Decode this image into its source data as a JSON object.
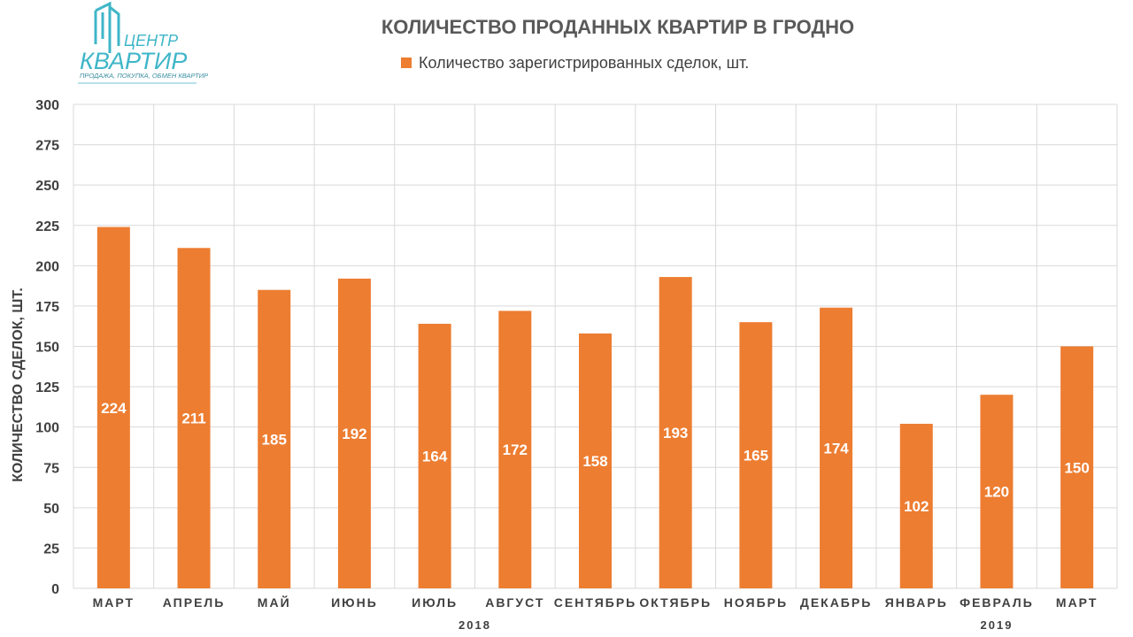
{
  "logo": {
    "line1": "ЦЕНТР",
    "line2": "КВАРТИР",
    "tagline": "ПРОДАЖА, ПОКУПКА, ОБМЕН КВАРТИР",
    "color": "#3fb6c8"
  },
  "chart_data": {
    "type": "bar",
    "title": "КОЛИЧЕСТВО ПРОДАННЫХ КВАРТИР В ГРОДНО",
    "ylabel": "КОЛИЧЕСТВО СДЕЛОК, ШТ.",
    "xlabel": "",
    "ylim": [
      0,
      300
    ],
    "yticks": [
      0,
      25,
      50,
      75,
      100,
      125,
      150,
      175,
      200,
      225,
      250,
      275,
      300
    ],
    "grid": true,
    "legend_position": "top-center",
    "categories": [
      "МАРТ",
      "АПРЕЛЬ",
      "МАЙ",
      "ИЮНЬ",
      "ИЮЛЬ",
      "АВГУСТ",
      "СЕНТЯБРЬ",
      "ОКТЯБРЬ",
      "НОЯБРЬ",
      "ДЕКАБРЬ",
      "ЯНВАРЬ",
      "ФЕВРАЛЬ",
      "МАРТ"
    ],
    "year_groups": [
      {
        "label": "2018",
        "from": 0,
        "to": 9
      },
      {
        "label": "2019",
        "from": 10,
        "to": 12
      }
    ],
    "series": [
      {
        "name": "Количество зарегистрированных сделок, шт.",
        "color": "#ed7d31",
        "values": [
          224,
          211,
          185,
          192,
          164,
          172,
          158,
          193,
          165,
          174,
          102,
          120,
          150
        ]
      }
    ]
  }
}
